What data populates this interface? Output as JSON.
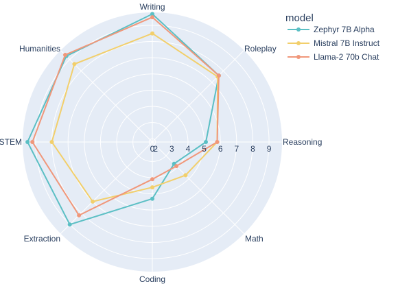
{
  "chart_data": {
    "type": "radar",
    "axes": [
      "Writing",
      "Roleplay",
      "Reasoning",
      "Math",
      "Coding",
      "Extraction",
      "STEM",
      "Humanities"
    ],
    "radial_ticks": [
      "0",
      "2",
      "3",
      "4",
      "5",
      "6",
      "7",
      "8",
      "9"
    ],
    "radial_range": [
      1.8,
      9.8
    ],
    "legend_title": "model",
    "series": [
      {
        "name": "Zephyr 7B Alpha",
        "color": "#5bbfc4",
        "values": [
          9.7,
          7.6,
          5.1,
          3.7,
          5.3,
          9.0,
          9.5,
          9.3
        ]
      },
      {
        "name": "Mistral 7B Instruct",
        "color": "#f2cf6b",
        "values": [
          8.5,
          7.5,
          5.8,
          4.7,
          4.6,
          7.0,
          8.0,
          8.6
        ]
      },
      {
        "name": "Llama-2 70b Chat",
        "color": "#f0977a",
        "values": [
          9.5,
          7.6,
          5.8,
          3.9,
          4.1,
          8.2,
          9.2,
          9.4
        ]
      }
    ],
    "grid": true,
    "legend_position": "top-right"
  }
}
